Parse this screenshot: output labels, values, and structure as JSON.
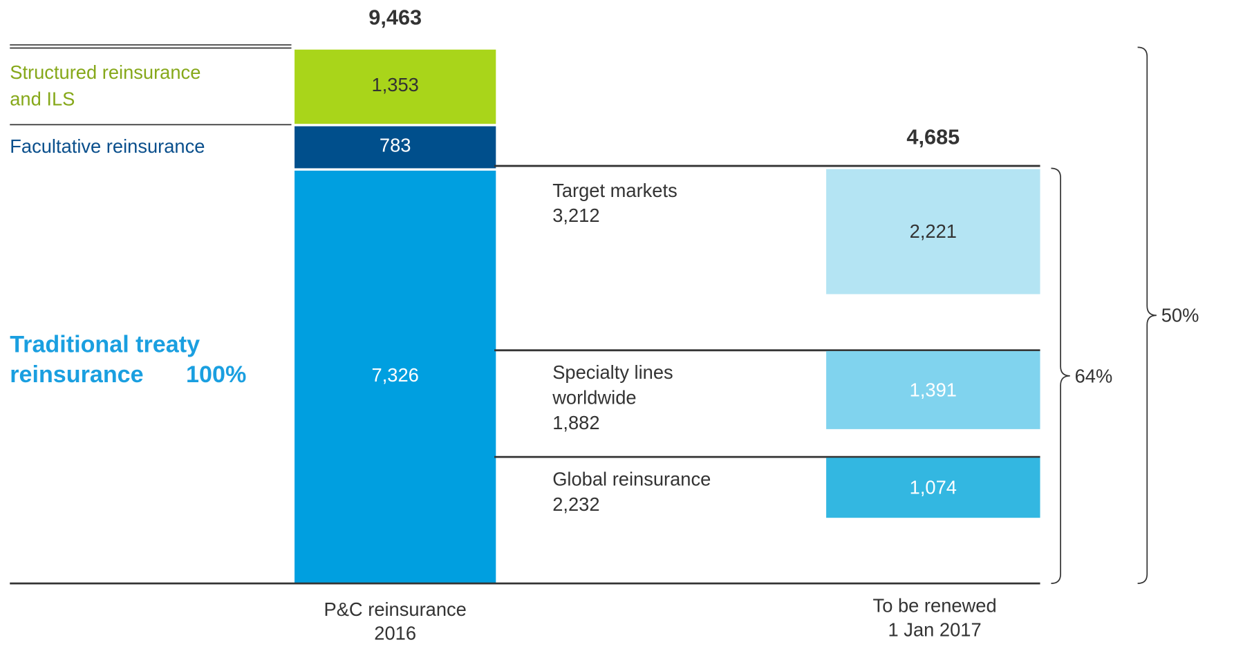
{
  "chart_data": {
    "type": "bridge",
    "bars": [
      {
        "label_lines": [
          "P&C reinsurance",
          "2016"
        ],
        "total": 9463,
        "total_label": "9,463",
        "segments": [
          {
            "name_lines": [
              "Traditional treaty",
              "reinsurance"
            ],
            "share": 100,
            "share_label": "100%",
            "value": 7326,
            "value_label": "7,326",
            "color": "#009fe0",
            "text_color": "#ffffff",
            "name_color": "#1a9fe0",
            "parts": [
              {
                "name_lines": [
                  "Target markets"
                ],
                "value": 3212,
                "value_label": "3,212"
              },
              {
                "name_lines": [
                  "Specialty lines",
                  "worldwide"
                ],
                "value": 1882,
                "value_label": "1,882"
              },
              {
                "name_lines": [
                  "Global reinsurance"
                ],
                "value": 2232,
                "value_label": "2,232"
              }
            ]
          },
          {
            "name_lines": [
              "Facultative reinsurance"
            ],
            "value": 783,
            "value_label": "783",
            "color": "#004f8c",
            "text_color": "#ffffff",
            "name_color": "#0a4f8c"
          },
          {
            "name_lines": [
              "Structured reinsurance",
              "and ILS"
            ],
            "value": 1353,
            "value_label": "1,353",
            "color": "#a9d51a",
            "text_color": "#333333",
            "name_color": "#86a81a"
          }
        ]
      },
      {
        "label_lines": [
          "To be renewed",
          "1 Jan 2017"
        ],
        "total": 4685,
        "total_label": "4,685",
        "segments": [
          {
            "value": 2221,
            "value_label": "2,221",
            "color": "#b4e4f3",
            "text_color": "#333333"
          },
          {
            "value": 1391,
            "value_label": "1,391",
            "color": "#80d3ee",
            "text_color": "#ffffff"
          },
          {
            "value": 1074,
            "value_label": "1,074",
            "color": "#33b7e1",
            "text_color": "#ffffff"
          }
        ]
      }
    ],
    "brackets": [
      {
        "value": 64,
        "label": "64%"
      },
      {
        "value": 50,
        "label": "50%"
      }
    ]
  }
}
